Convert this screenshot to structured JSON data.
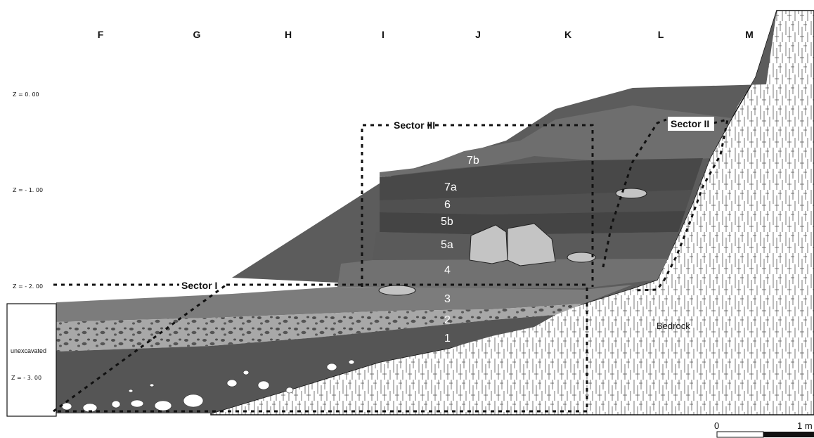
{
  "grid": {
    "columns": [
      "F",
      "G",
      "H",
      "I",
      "J",
      "K",
      "L",
      "M"
    ],
    "depths": [
      "Z = 0. 00",
      "Z = - 1. 00",
      "Z = - 2. 00",
      "Z = - 3. 00"
    ]
  },
  "sectors": {
    "sector_I": "Sector I",
    "sector_II": "Sector II",
    "sector_III": "Sector III"
  },
  "layers": [
    "7b",
    "7a",
    "6",
    "5b",
    "5a",
    "4",
    "3",
    "2",
    "1"
  ],
  "labels": {
    "bedrock": "Bedrock",
    "unexcavated": "unexcavated"
  },
  "scale_bar": {
    "start": "0",
    "end": "1 m"
  },
  "colors": {
    "layer_7b": "#6e6e6e",
    "layer_7a": "#4a4a4a",
    "layer_6": "#505050",
    "layer_5b": "#444444",
    "layer_5a": "#5a5a5a",
    "layer_4": "#717171",
    "layer_3": "#7c7c7c",
    "layer_2": "#a8a8a8",
    "layer_1": "#545454",
    "upper_slope": "#5c5c5c",
    "rock": "#c4c4c4",
    "bedrock": "#ffffff"
  }
}
